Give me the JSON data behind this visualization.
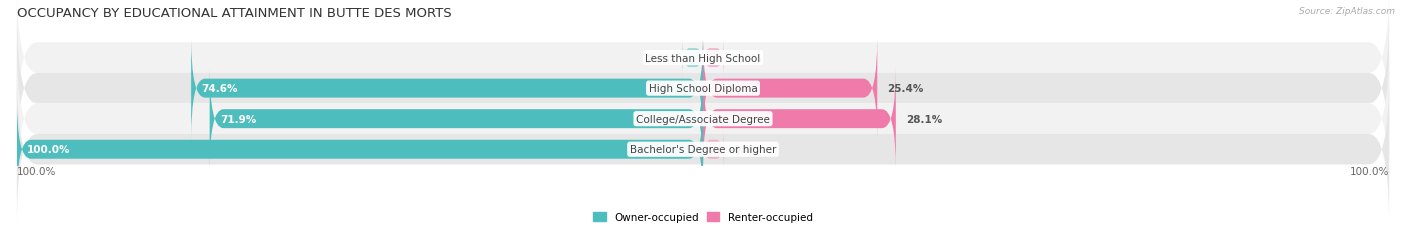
{
  "title": "OCCUPANCY BY EDUCATIONAL ATTAINMENT IN BUTTE DES MORTS",
  "source": "Source: ZipAtlas.com",
  "categories": [
    "Less than High School",
    "High School Diploma",
    "College/Associate Degree",
    "Bachelor's Degree or higher"
  ],
  "owner_values": [
    0.0,
    74.6,
    71.9,
    100.0
  ],
  "renter_values": [
    0.0,
    25.4,
    28.1,
    0.0
  ],
  "owner_color": "#4dbdbd",
  "renter_color": "#f07aaa",
  "owner_label": "Owner-occupied",
  "renter_label": "Renter-occupied",
  "row_bg_light": "#f2f2f2",
  "row_bg_dark": "#e6e6e6",
  "axis_label_left": "100.0%",
  "axis_label_right": "100.0%",
  "title_fontsize": 9.5,
  "label_fontsize": 7.5,
  "tick_fontsize": 7.5,
  "figsize": [
    14.06,
    2.32
  ],
  "dpi": 100
}
